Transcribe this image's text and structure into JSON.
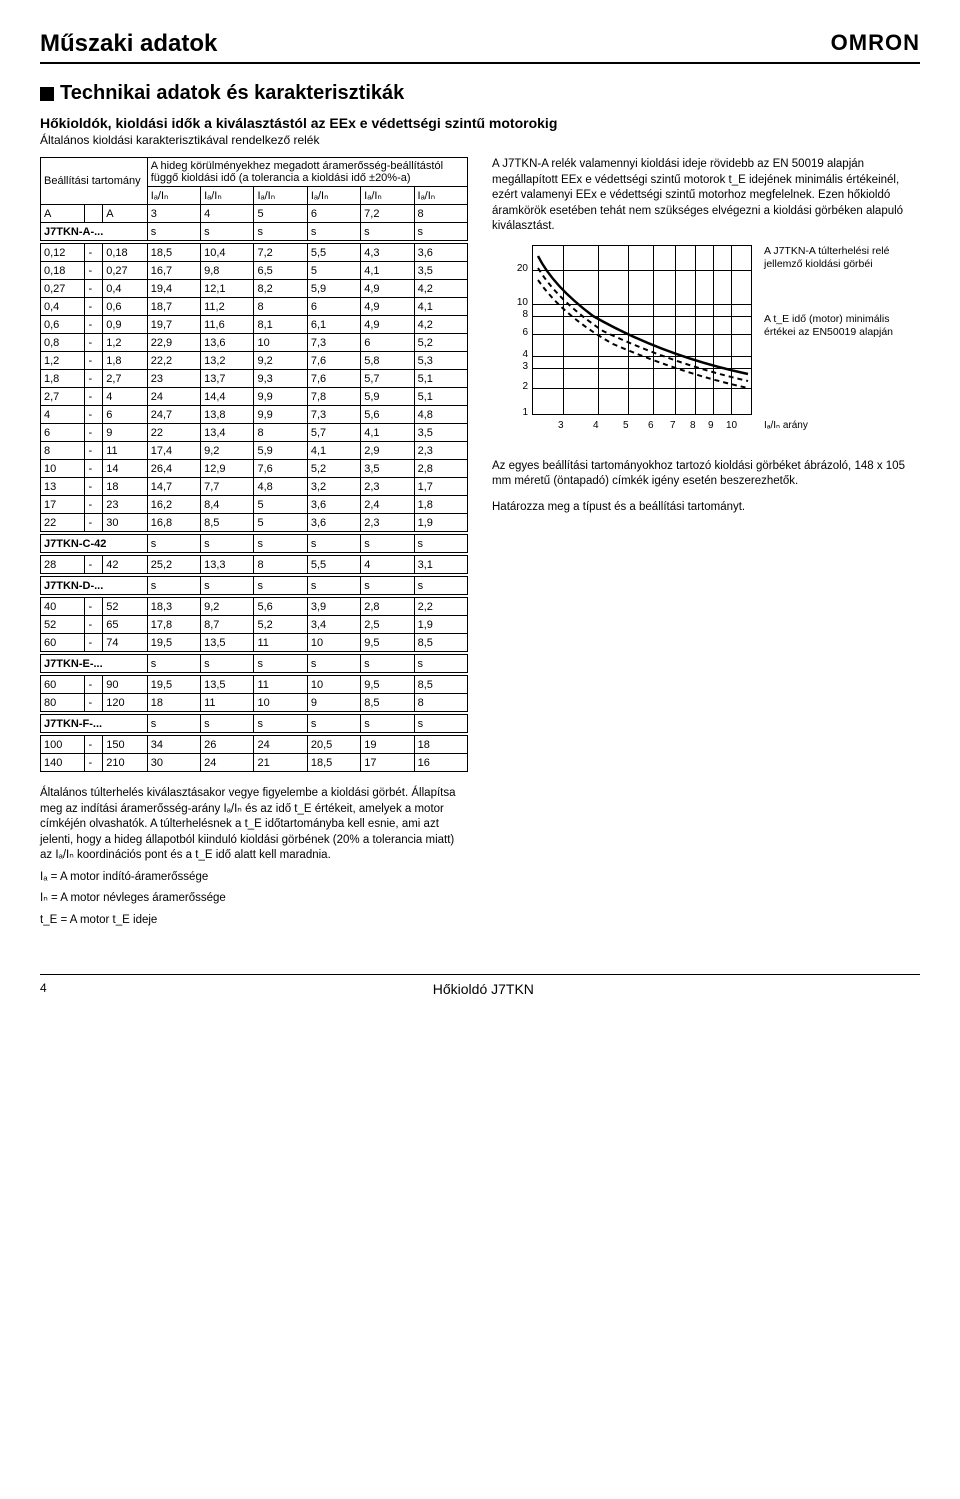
{
  "header": {
    "title": "Műszaki adatok",
    "logo": "OMRON"
  },
  "section_title": "Technikai adatok és karakterisztikák",
  "sub1": "Hőkioldók, kioldási idők a kiválasztástól az EEx e védettségi szintű motorokig",
  "sub2": "Általános kioldási karakterisztikával rendelkező relék",
  "tbl_top": {
    "r1c1": "Beállítási tartomány",
    "r1c2": "A hideg körülményekhez megadott áramerősség-beállítástól függő kioldási idő (a tolerancia a kioldási idő ±20%-a)",
    "ratio_labels": [
      "Iₐ/Iₙ",
      "Iₐ/Iₙ",
      "Iₐ/Iₙ",
      "Iₐ/Iₙ",
      "Iₐ/Iₙ",
      "Iₐ/Iₙ"
    ],
    "A1": "A",
    "A2": "A",
    "ratio_vals": [
      "3",
      "4",
      "5",
      "6",
      "7,2",
      "8"
    ]
  },
  "models": {
    "a": "J7TKN-A-...",
    "c": "J7TKN-C-42",
    "d": "J7TKN-D-...",
    "e": "J7TKN-E-...",
    "f": "J7TKN-F-..."
  },
  "s_row": [
    "s",
    "s",
    "s",
    "s",
    "s",
    "s"
  ],
  "data_a": [
    [
      "0,12",
      "-",
      "0,18",
      "18,5",
      "10,4",
      "7,2",
      "5,5",
      "4,3",
      "3,6"
    ],
    [
      "0,18",
      "-",
      "0,27",
      "16,7",
      "9,8",
      "6,5",
      "5",
      "4,1",
      "3,5"
    ],
    [
      "0,27",
      "-",
      "0,4",
      "19,4",
      "12,1",
      "8,2",
      "5,9",
      "4,9",
      "4,2"
    ],
    [
      "0,4",
      "-",
      "0,6",
      "18,7",
      "11,2",
      "8",
      "6",
      "4,9",
      "4,1"
    ],
    [
      "0,6",
      "-",
      "0,9",
      "19,7",
      "11,6",
      "8,1",
      "6,1",
      "4,9",
      "4,2"
    ],
    [
      "0,8",
      "-",
      "1,2",
      "22,9",
      "13,6",
      "10",
      "7,3",
      "6",
      "5,2"
    ],
    [
      "1,2",
      "-",
      "1,8",
      "22,2",
      "13,2",
      "9,2",
      "7,6",
      "5,8",
      "5,3"
    ],
    [
      "1,8",
      "-",
      "2,7",
      "23",
      "13,7",
      "9,3",
      "7,6",
      "5,7",
      "5,1"
    ],
    [
      "2,7",
      "-",
      "4",
      "24",
      "14,4",
      "9,9",
      "7,8",
      "5,9",
      "5,1"
    ],
    [
      "4",
      "-",
      "6",
      "24,7",
      "13,8",
      "9,9",
      "7,3",
      "5,6",
      "4,8"
    ],
    [
      "6",
      "-",
      "9",
      "22",
      "13,4",
      "8",
      "5,7",
      "4,1",
      "3,5"
    ],
    [
      "8",
      "-",
      "11",
      "17,4",
      "9,2",
      "5,9",
      "4,1",
      "2,9",
      "2,3"
    ],
    [
      "10",
      "-",
      "14",
      "26,4",
      "12,9",
      "7,6",
      "5,2",
      "3,5",
      "2,8"
    ],
    [
      "13",
      "-",
      "18",
      "14,7",
      "7,7",
      "4,8",
      "3,2",
      "2,3",
      "1,7"
    ],
    [
      "17",
      "-",
      "23",
      "16,2",
      "8,4",
      "5",
      "3,6",
      "2,4",
      "1,8"
    ],
    [
      "22",
      "-",
      "30",
      "16,8",
      "8,5",
      "5",
      "3,6",
      "2,3",
      "1,9"
    ]
  ],
  "data_c": [
    [
      "28",
      "-",
      "42",
      "25,2",
      "13,3",
      "8",
      "5,5",
      "4",
      "3,1"
    ]
  ],
  "data_d": [
    [
      "40",
      "-",
      "52",
      "18,3",
      "9,2",
      "5,6",
      "3,9",
      "2,8",
      "2,2"
    ],
    [
      "52",
      "-",
      "65",
      "17,8",
      "8,7",
      "5,2",
      "3,4",
      "2,5",
      "1,9"
    ],
    [
      "60",
      "-",
      "74",
      "19,5",
      "13,5",
      "11",
      "10",
      "9,5",
      "8,5"
    ]
  ],
  "data_e": [
    [
      "60",
      "-",
      "90",
      "19,5",
      "13,5",
      "11",
      "10",
      "9,5",
      "8,5"
    ],
    [
      "80",
      "-",
      "120",
      "18",
      "11",
      "10",
      "9",
      "8,5",
      "8"
    ]
  ],
  "data_f": [
    [
      "100",
      "-",
      "150",
      "34",
      "26",
      "24",
      "20,5",
      "19",
      "18"
    ],
    [
      "140",
      "-",
      "210",
      "30",
      "24",
      "21",
      "18,5",
      "17",
      "16"
    ]
  ],
  "notes": {
    "p1": "Általános túlterhelés kiválasztásakor vegye figyelembe a kioldási görbét. Állapítsa meg az indítási áramerősség-arány Iₐ/Iₙ és az idő t_E értékeit, amelyek a motor címkéjén olvashatók. A túlterhelésnek a t_E időtartományba kell esnie, ami azt jelenti, hogy a hideg állapotból kiinduló kioldási görbének (20% a tolerancia miatt) az Iₐ/Iₙ koordinációs pont és a t_E idő alatt kell maradnia.",
    "p2": "Iₐ = A motor indító-áramerőssége",
    "p3": "Iₙ = A motor névleges áramerőssége",
    "p4": "t_E = A motor t_E ideje"
  },
  "right": {
    "p1": "A J7TKN-A relék valamennyi kioldási ideje rövidebb az EN 50019 alapján megállapított EEx e védettségi szintű motorok t_E idejének minimális értékeinél, ezért valamenyi EEx e védettségi szintű motorhoz megfelelnek. Ezen hőkioldó áramkörök esetében tehát nem szükséges elvégezni a kioldási görbéken alapuló kiválasztást.",
    "p2": "Az egyes beállítási tartományokhoz tartozó kioldási görbéket ábrázoló, 148 x 105 mm méretű (öntapadó) címkék igény esetén beszerezhetők.",
    "p3": "Határozza meg a típust és a beállítási tartományt."
  },
  "chart": {
    "yticks": [
      "20",
      "10",
      "8",
      "6",
      "4",
      "3",
      "2",
      "1"
    ],
    "xticks": [
      "3",
      "4",
      "5",
      "6",
      "7",
      "8",
      "9",
      "10"
    ],
    "xlabel": "Iₐ/Iₙ arány",
    "ann1": "A J7TKN-A túlterhelési relé jellemző kioldási görbéi",
    "ann2": "A t_E idő (motor) minimális értékei az EN50019 alapján"
  },
  "footer": {
    "page": "4",
    "text": "Hőkioldó  J7TKN"
  }
}
